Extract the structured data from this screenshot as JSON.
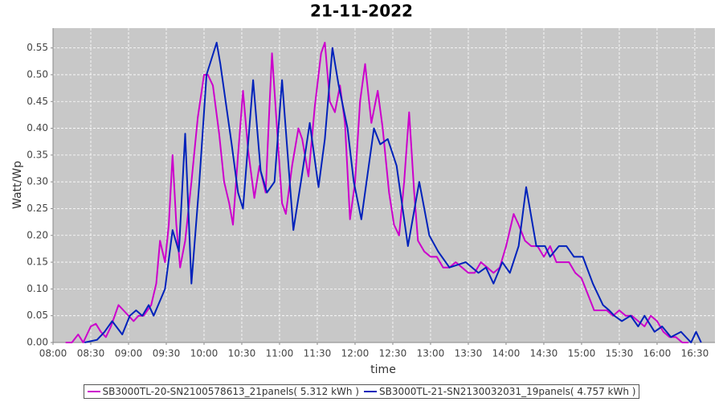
{
  "chart_data": {
    "type": "line",
    "title": "21-11-2022",
    "x_label": "time",
    "y_label": "Watt/Wp",
    "xlim": [
      "08:00",
      "16:46"
    ],
    "xticks": [
      "08:00",
      "08:30",
      "09:00",
      "09:30",
      "10:00",
      "10:30",
      "11:00",
      "11:30",
      "12:00",
      "12:30",
      "13:00",
      "13:30",
      "14:00",
      "14:30",
      "15:00",
      "15:30",
      "16:00",
      "16:30"
    ],
    "ylim": [
      0,
      0.587
    ],
    "yticks": [
      {
        "value": 0,
        "label": "0.00"
      },
      0.05,
      {
        "value": 0.1,
        "label": "0.10"
      },
      0.15,
      {
        "value": 0.2,
        "label": "0.20"
      },
      0.25,
      {
        "value": 0.3,
        "label": "0.30"
      },
      0.35,
      {
        "value": 0.4,
        "label": "0.40"
      },
      0.45,
      {
        "value": 0.5,
        "label": "0.50"
      },
      0.55
    ],
    "grid": true,
    "legend": "bottom",
    "series": [
      {
        "name": "SB3000TL-20-SN2100578613_21panels( 5.312 kWh )",
        "color": "#cc00cc",
        "x": [
          "08:10",
          "08:15",
          "08:20",
          "08:24",
          "08:30",
          "08:34",
          "08:38",
          "08:42",
          "08:46",
          "08:52",
          "08:56",
          "09:00",
          "09:04",
          "09:08",
          "09:12",
          "09:15",
          "09:18",
          "09:22",
          "09:25",
          "09:29",
          "09:32",
          "09:35",
          "09:38",
          "09:41",
          "09:45",
          "09:50",
          "09:55",
          "10:00",
          "10:03",
          "10:07",
          "10:12",
          "10:16",
          "10:20",
          "10:23",
          "10:27",
          "10:31",
          "10:35",
          "10:40",
          "10:44",
          "10:49",
          "10:52",
          "10:54",
          "10:58",
          "11:02",
          "11:05",
          "11:10",
          "11:15",
          "11:18",
          "11:23",
          "11:28",
          "11:33",
          "11:36",
          "11:40",
          "11:44",
          "11:48",
          "11:52",
          "11:56",
          "12:00",
          "12:04",
          "12:08",
          "12:13",
          "12:18",
          "12:22",
          "12:27",
          "12:31",
          "12:35",
          "12:39",
          "12:43",
          "12:47",
          "12:50",
          "12:55",
          "13:00",
          "13:05",
          "13:10",
          "13:15",
          "13:20",
          "13:25",
          "13:30",
          "13:35",
          "13:40",
          "13:45",
          "13:50",
          "13:55",
          "14:00",
          "14:06",
          "14:10",
          "14:15",
          "14:20",
          "14:25",
          "14:30",
          "14:35",
          "14:40",
          "14:45",
          "14:50",
          "14:55",
          "15:00",
          "15:05",
          "15:10",
          "15:15",
          "15:20",
          "15:25",
          "15:30",
          "15:35",
          "15:40",
          "15:45",
          "15:50",
          "15:55",
          "16:00",
          "16:05",
          "16:10",
          "16:15",
          "16:20",
          "16:25"
        ],
        "values": [
          0,
          0,
          0.015,
          0,
          0.03,
          0.035,
          0.02,
          0.01,
          0.03,
          0.07,
          0.06,
          0.05,
          0.04,
          0.05,
          0.05,
          0.06,
          0.07,
          0.11,
          0.19,
          0.15,
          0.22,
          0.35,
          0.22,
          0.14,
          0.19,
          0.3,
          0.42,
          0.5,
          0.5,
          0.48,
          0.39,
          0.3,
          0.26,
          0.22,
          0.35,
          0.47,
          0.36,
          0.27,
          0.33,
          0.28,
          0.44,
          0.54,
          0.4,
          0.26,
          0.24,
          0.33,
          0.4,
          0.38,
          0.31,
          0.44,
          0.54,
          0.56,
          0.45,
          0.43,
          0.48,
          0.41,
          0.23,
          0.3,
          0.45,
          0.52,
          0.41,
          0.47,
          0.4,
          0.28,
          0.22,
          0.2,
          0.3,
          0.43,
          0.28,
          0.19,
          0.17,
          0.16,
          0.16,
          0.14,
          0.14,
          0.15,
          0.14,
          0.13,
          0.13,
          0.15,
          0.14,
          0.13,
          0.14,
          0.18,
          0.24,
          0.22,
          0.19,
          0.18,
          0.18,
          0.16,
          0.18,
          0.15,
          0.15,
          0.15,
          0.13,
          0.12,
          0.09,
          0.06,
          0.06,
          0.06,
          0.05,
          0.06,
          0.05,
          0.05,
          0.04,
          0.03,
          0.05,
          0.04,
          0.02,
          0.01,
          0.01,
          0,
          0
        ]
      },
      {
        "name": "SB3000TL-21-SN2130032031_19panels( 4.757 kWh )",
        "color": "#0022bb",
        "x": [
          "08:25",
          "08:35",
          "08:41",
          "08:47",
          "08:55",
          "09:01",
          "09:06",
          "09:11",
          "09:16",
          "09:20",
          "09:29",
          "09:35",
          "09:40",
          "09:45",
          "09:50",
          "09:56",
          "10:02",
          "10:10",
          "10:13",
          "10:22",
          "10:27",
          "10:31",
          "10:39",
          "10:45",
          "10:50",
          "10:56",
          "11:02",
          "11:11",
          "11:17",
          "11:24",
          "11:31",
          "11:36",
          "11:42",
          "11:47",
          "11:54",
          "11:59",
          "12:05",
          "12:15",
          "12:20",
          "12:26",
          "12:33",
          "12:42",
          "12:51",
          "12:59",
          "13:06",
          "13:15",
          "13:28",
          "13:38",
          "13:44",
          "13:50",
          "13:57",
          "14:03",
          "14:10",
          "14:16",
          "14:24",
          "14:31",
          "14:35",
          "14:42",
          "14:48",
          "14:54",
          "15:01",
          "15:09",
          "15:17",
          "15:22",
          "15:26",
          "15:32",
          "15:39",
          "15:45",
          "15:50",
          "15:58",
          "16:04",
          "16:11",
          "16:19",
          "16:27",
          "16:31",
          "16:35"
        ],
        "values": [
          0,
          0.005,
          0.02,
          0.04,
          0.015,
          0.05,
          0.06,
          0.05,
          0.07,
          0.05,
          0.1,
          0.21,
          0.17,
          0.39,
          0.11,
          0.29,
          0.5,
          0.56,
          0.52,
          0.37,
          0.28,
          0.25,
          0.49,
          0.32,
          0.28,
          0.3,
          0.49,
          0.21,
          0.3,
          0.41,
          0.29,
          0.38,
          0.55,
          0.48,
          0.4,
          0.3,
          0.23,
          0.4,
          0.37,
          0.38,
          0.33,
          0.18,
          0.3,
          0.2,
          0.17,
          0.14,
          0.15,
          0.13,
          0.14,
          0.11,
          0.15,
          0.13,
          0.18,
          0.29,
          0.18,
          0.18,
          0.16,
          0.18,
          0.18,
          0.16,
          0.16,
          0.11,
          0.07,
          0.06,
          0.05,
          0.04,
          0.05,
          0.03,
          0.05,
          0.02,
          0.03,
          0.01,
          0.02,
          0,
          0.02,
          0
        ]
      }
    ]
  }
}
